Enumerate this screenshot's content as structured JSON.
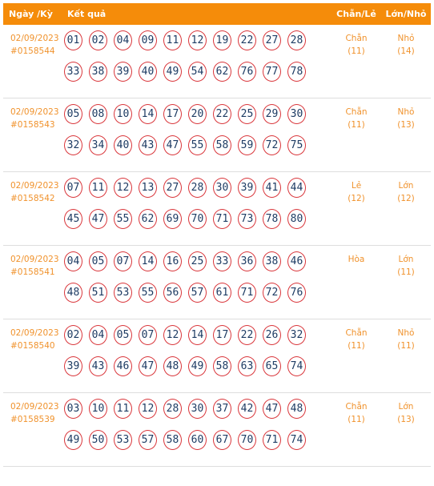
{
  "header": {
    "date_label": "Ngày /Kỳ",
    "result_label": "Kết quả",
    "even_odd_label": "Chẵn/Lẻ",
    "big_small_label": "Lớn/Nhỏ"
  },
  "rows": [
    {
      "date": "02/09/2023",
      "id": "#0158544",
      "balls": [
        "01",
        "02",
        "04",
        "09",
        "11",
        "12",
        "19",
        "22",
        "27",
        "28",
        "33",
        "38",
        "39",
        "40",
        "49",
        "54",
        "62",
        "76",
        "77",
        "78"
      ],
      "even_odd": "Chẵn",
      "even_odd_count": "(11)",
      "big_small": "Nhỏ",
      "big_small_count": "(14)"
    },
    {
      "date": "02/09/2023",
      "id": "#0158543",
      "balls": [
        "05",
        "08",
        "10",
        "14",
        "17",
        "20",
        "22",
        "25",
        "29",
        "30",
        "32",
        "34",
        "40",
        "43",
        "47",
        "55",
        "58",
        "59",
        "72",
        "75"
      ],
      "even_odd": "Chẵn",
      "even_odd_count": "(11)",
      "big_small": "Nhỏ",
      "big_small_count": "(13)"
    },
    {
      "date": "02/09/2023",
      "id": "#0158542",
      "balls": [
        "07",
        "11",
        "12",
        "13",
        "27",
        "28",
        "30",
        "39",
        "41",
        "44",
        "45",
        "47",
        "55",
        "62",
        "69",
        "70",
        "71",
        "73",
        "78",
        "80"
      ],
      "even_odd": "Lẻ",
      "even_odd_count": "(12)",
      "big_small": "Lớn",
      "big_small_count": "(12)"
    },
    {
      "date": "02/09/2023",
      "id": "#0158541",
      "balls": [
        "04",
        "05",
        "07",
        "14",
        "16",
        "25",
        "33",
        "36",
        "38",
        "46",
        "48",
        "51",
        "53",
        "55",
        "56",
        "57",
        "61",
        "71",
        "72",
        "76"
      ],
      "even_odd": "Hòa",
      "even_odd_count": "",
      "big_small": "Lớn",
      "big_small_count": "(11)"
    },
    {
      "date": "02/09/2023",
      "id": "#0158540",
      "balls": [
        "02",
        "04",
        "05",
        "07",
        "12",
        "14",
        "17",
        "22",
        "26",
        "32",
        "39",
        "43",
        "46",
        "47",
        "48",
        "49",
        "58",
        "63",
        "65",
        "74"
      ],
      "even_odd": "Chẵn",
      "even_odd_count": "(11)",
      "big_small": "Nhỏ",
      "big_small_count": "(11)"
    },
    {
      "date": "02/09/2023",
      "id": "#0158539",
      "balls": [
        "03",
        "10",
        "11",
        "12",
        "28",
        "30",
        "37",
        "42",
        "47",
        "48",
        "49",
        "50",
        "53",
        "57",
        "58",
        "60",
        "67",
        "70",
        "71",
        "74"
      ],
      "even_odd": "Chẵn",
      "even_odd_count": "(11)",
      "big_small": "Lớn",
      "big_small_count": "(13)"
    }
  ]
}
